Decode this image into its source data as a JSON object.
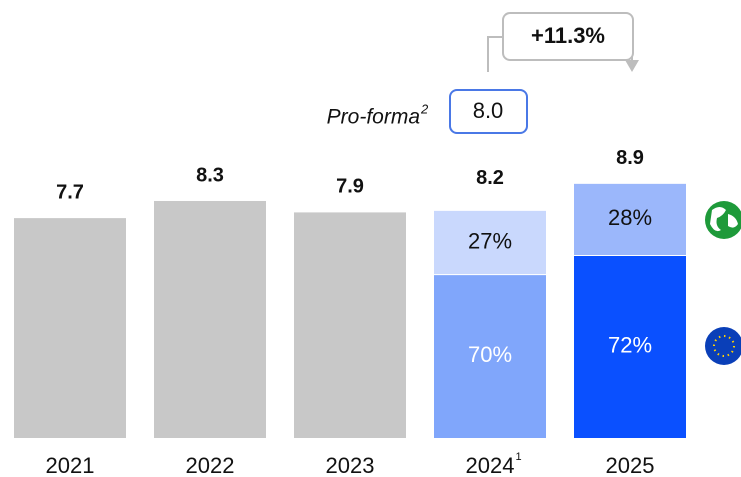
{
  "chart_data": {
    "type": "bar",
    "categories": [
      "2021",
      "2022",
      "2023",
      "2024",
      "2025"
    ],
    "category_notes": [
      null,
      null,
      null,
      "1",
      null
    ],
    "values": [
      7.7,
      8.3,
      7.9,
      8.2,
      8.9
    ],
    "color": "#c8c8c8",
    "ylim": [
      0,
      9
    ],
    "shares": [
      {
        "values": [
          null,
          null,
          null,
          70,
          72
        ],
        "value_labels": [
          null,
          null,
          null,
          "70%",
          "72%"
        ],
        "colors": [
          null,
          null,
          null,
          "#80a6fb",
          "#0a50ff"
        ],
        "text_colors": [
          null,
          null,
          null,
          "#ffffff",
          "#ffffff"
        ]
      },
      {
        "values": [
          null,
          null,
          null,
          27,
          28
        ],
        "value_labels": [
          null,
          null,
          null,
          "27%",
          "28%"
        ],
        "colors": [
          null,
          null,
          null,
          "#c9d8fd",
          "#9bb7fb"
        ],
        "text_colors": [
          null,
          null,
          null,
          "#111111",
          "#111111"
        ]
      }
    ],
    "proforma": {
      "label": "Pro-forma",
      "superscript": "2",
      "value": 8.0,
      "value_label": "8.0"
    },
    "growth": "+11.3%"
  }
}
